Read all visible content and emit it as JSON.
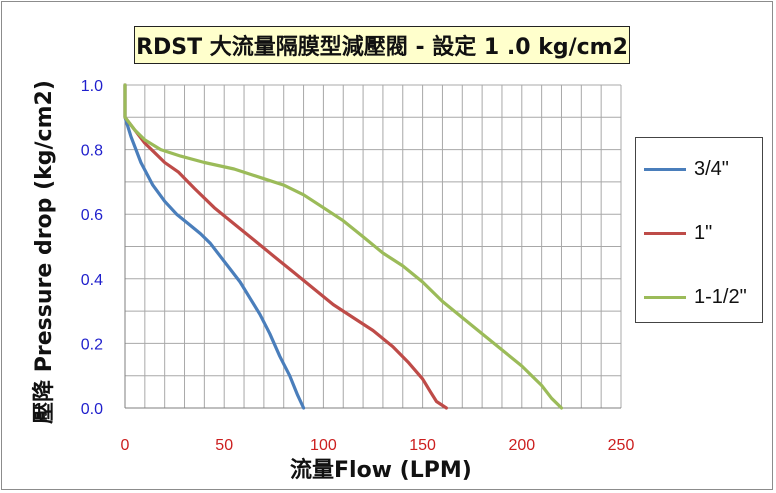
{
  "chart_data": {
    "type": "line",
    "title": "RDST 大流量隔膜型減壓閥 - 設定 1 .0 kg/cm2",
    "xlabel": "流量Flow (LPM)",
    "ylabel": "壓降 Pressure drop (kg/cm2)",
    "xlim": [
      0,
      250
    ],
    "ylim": [
      0,
      1.0
    ],
    "x_ticks": [
      "0",
      "50",
      "100",
      "150",
      "200",
      "250"
    ],
    "y_ticks": [
      "0.0",
      "0.2",
      "0.4",
      "0.6",
      "0.8",
      "1.0"
    ],
    "grid": true,
    "legend_position": "right",
    "series": [
      {
        "name": "3/4\"",
        "color": "#4a7ebb",
        "points": [
          [
            0,
            1.0
          ],
          [
            0,
            0.9
          ],
          [
            3,
            0.84
          ],
          [
            8,
            0.76
          ],
          [
            14,
            0.69
          ],
          [
            20,
            0.64
          ],
          [
            26,
            0.6
          ],
          [
            32,
            0.57
          ],
          [
            38,
            0.54
          ],
          [
            43,
            0.51
          ],
          [
            48,
            0.47
          ],
          [
            53,
            0.43
          ],
          [
            58,
            0.39
          ],
          [
            63,
            0.34
          ],
          [
            68,
            0.29
          ],
          [
            73,
            0.23
          ],
          [
            78,
            0.16
          ],
          [
            83,
            0.1
          ],
          [
            87,
            0.04
          ],
          [
            90,
            0.0
          ]
        ]
      },
      {
        "name": "1\"",
        "color": "#be4b48",
        "points": [
          [
            0,
            1.0
          ],
          [
            0,
            0.9
          ],
          [
            5,
            0.86
          ],
          [
            10,
            0.82
          ],
          [
            15,
            0.79
          ],
          [
            20,
            0.76
          ],
          [
            27,
            0.73
          ],
          [
            35,
            0.68
          ],
          [
            45,
            0.62
          ],
          [
            55,
            0.57
          ],
          [
            65,
            0.52
          ],
          [
            75,
            0.47
          ],
          [
            85,
            0.42
          ],
          [
            95,
            0.37
          ],
          [
            105,
            0.32
          ],
          [
            115,
            0.28
          ],
          [
            125,
            0.24
          ],
          [
            135,
            0.19
          ],
          [
            143,
            0.14
          ],
          [
            150,
            0.09
          ],
          [
            154,
            0.05
          ],
          [
            157,
            0.02
          ],
          [
            162,
            0.0
          ]
        ]
      },
      {
        "name": "1-1/2\"",
        "color": "#9bbb59",
        "points": [
          [
            0,
            1.0
          ],
          [
            0,
            0.9
          ],
          [
            5,
            0.86
          ],
          [
            10,
            0.83
          ],
          [
            18,
            0.8
          ],
          [
            28,
            0.78
          ],
          [
            40,
            0.76
          ],
          [
            55,
            0.74
          ],
          [
            70,
            0.71
          ],
          [
            80,
            0.69
          ],
          [
            90,
            0.66
          ],
          [
            100,
            0.62
          ],
          [
            110,
            0.58
          ],
          [
            120,
            0.53
          ],
          [
            130,
            0.48
          ],
          [
            140,
            0.44
          ],
          [
            150,
            0.39
          ],
          [
            160,
            0.33
          ],
          [
            170,
            0.28
          ],
          [
            180,
            0.23
          ],
          [
            190,
            0.18
          ],
          [
            200,
            0.13
          ],
          [
            210,
            0.07
          ],
          [
            215,
            0.03
          ],
          [
            220,
            0.0
          ]
        ]
      }
    ]
  }
}
